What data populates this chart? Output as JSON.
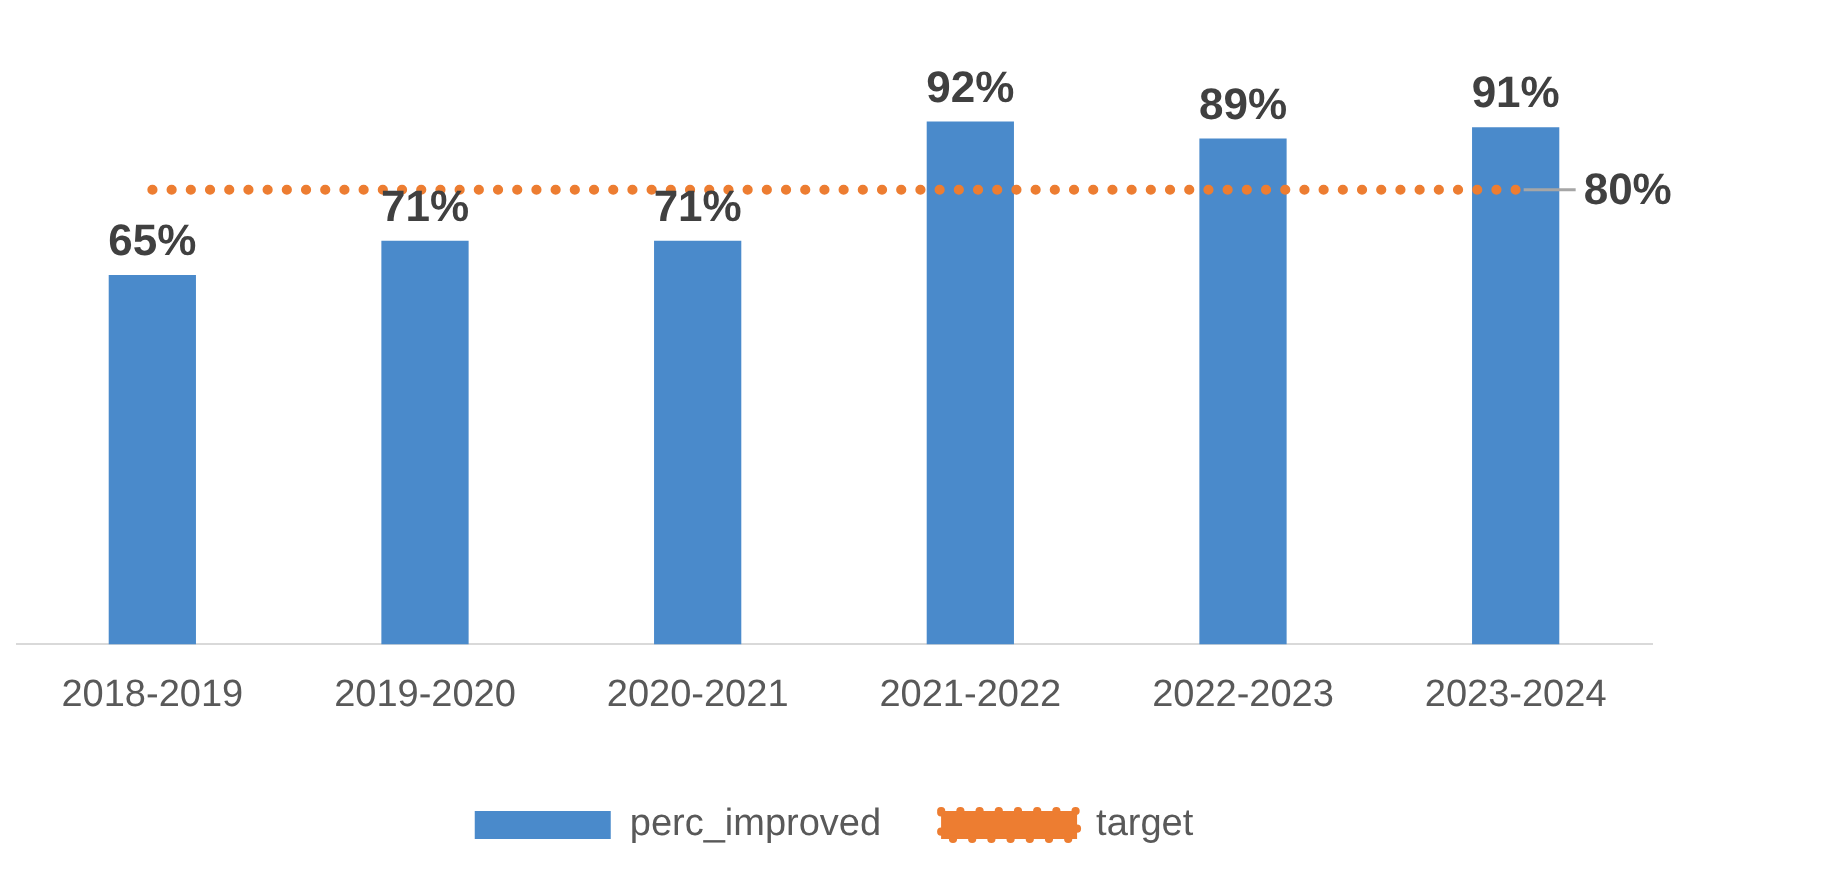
{
  "chart_data": {
    "type": "bar",
    "categories": [
      "2018-2019",
      "2019-2020",
      "2020-2021",
      "2021-2022",
      "2022-2023",
      "2023-2024"
    ],
    "series": [
      {
        "name": "perc_improved",
        "color": "#4a8acb",
        "values": [
          65,
          71,
          71,
          92,
          89,
          91
        ],
        "value_labels": [
          "65%",
          "71%",
          "71%",
          "92%",
          "89%",
          "91%"
        ]
      },
      {
        "name": "target",
        "type": "line",
        "color": "#ed7d31",
        "line_style": "dotted",
        "marker": "none",
        "values": [
          80,
          80,
          80,
          80,
          80,
          80
        ],
        "value_labels": [
          null,
          null,
          null,
          null,
          null,
          "80%"
        ]
      }
    ],
    "tick_labels": "x",
    "legend": "bottom",
    "grid": false
  }
}
